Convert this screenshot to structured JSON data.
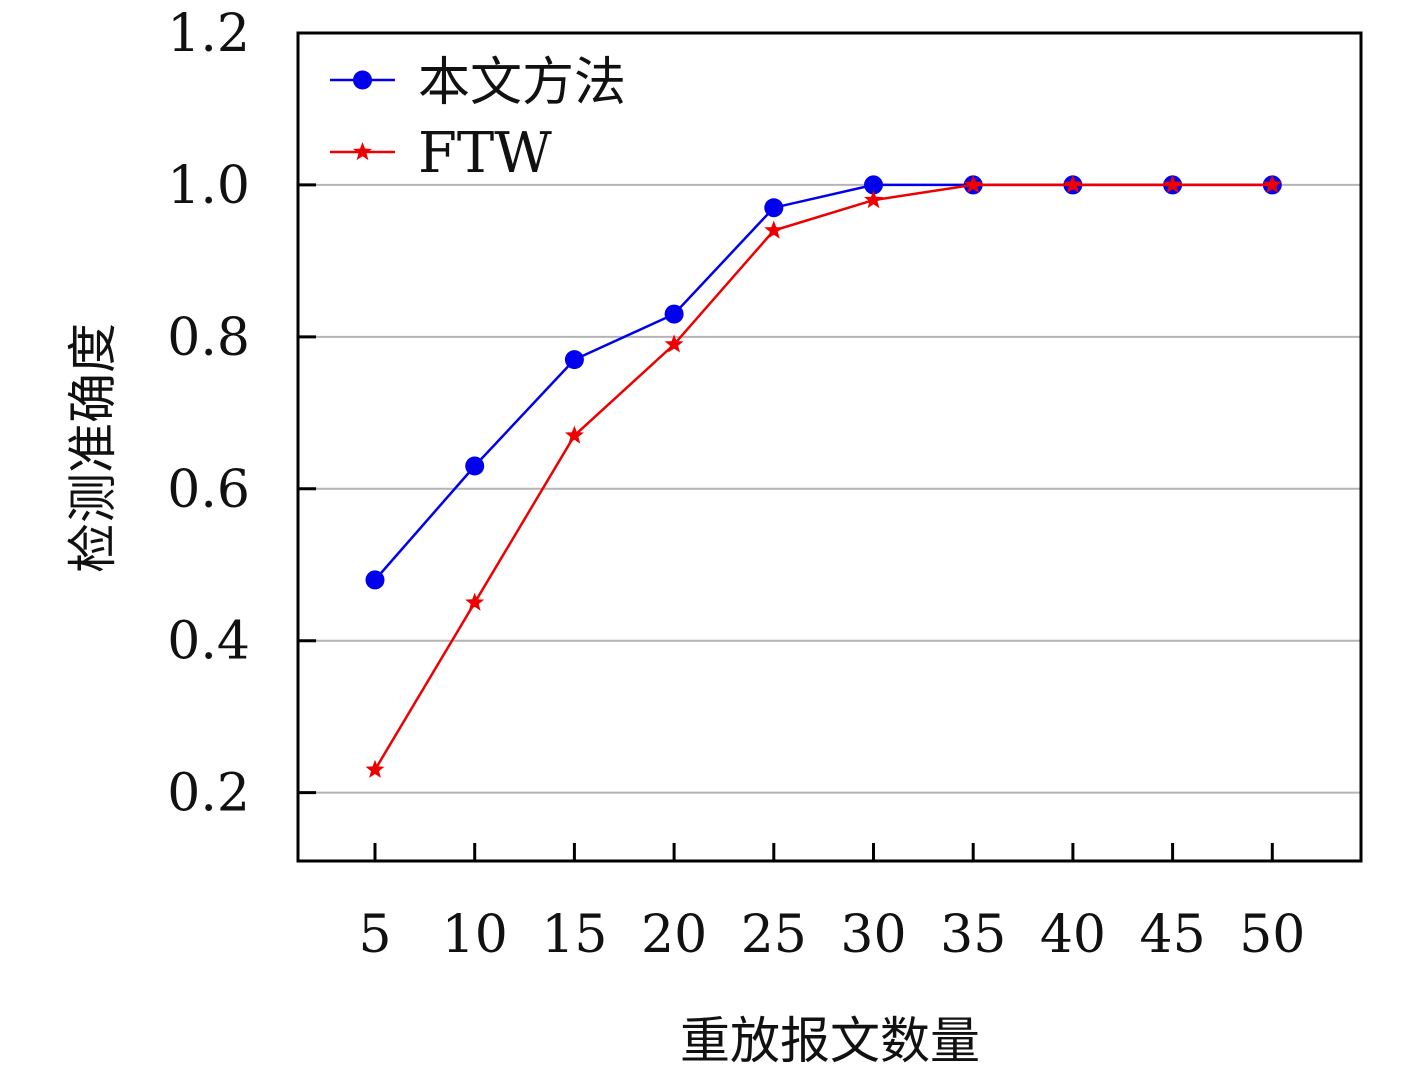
{
  "chart_data": {
    "type": "line",
    "title": "",
    "xlabel": "重放报文数量",
    "ylabel": "检测准确度",
    "x": [
      5,
      10,
      15,
      20,
      25,
      30,
      35,
      40,
      45,
      50
    ],
    "x_ticks": [
      "5",
      "10",
      "15",
      "20",
      "25",
      "30",
      "35",
      "40",
      "45",
      "50"
    ],
    "y_ticks": [
      "0.2",
      "0.4",
      "0.6",
      "0.8",
      "1.0",
      "1.2"
    ],
    "ylim": [
      0.11,
      1.2
    ],
    "grid": "horizontal",
    "legend_position": "top-left",
    "series": [
      {
        "name": "本文方法",
        "color": "#0000ee",
        "marker": "circle",
        "values": [
          0.48,
          0.63,
          0.77,
          0.83,
          0.97,
          1.0,
          1.0,
          1.0,
          1.0,
          1.0
        ]
      },
      {
        "name": "FTW",
        "color": "#ee0000",
        "marker": "star",
        "values": [
          0.23,
          0.45,
          0.67,
          0.79,
          0.94,
          0.98,
          1.0,
          1.0,
          1.0,
          1.0
        ]
      }
    ]
  }
}
